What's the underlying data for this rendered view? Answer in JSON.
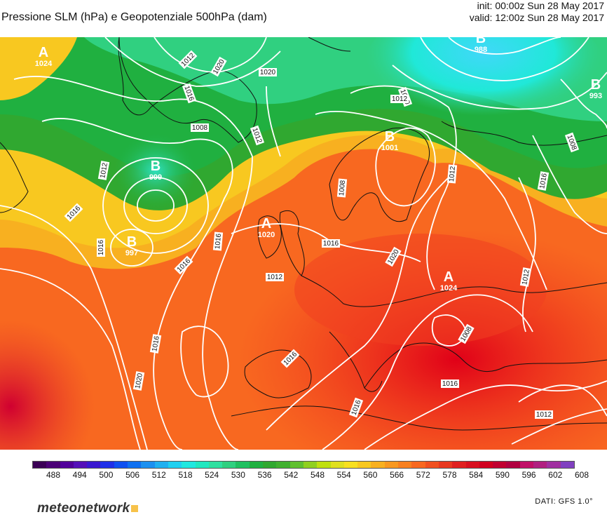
{
  "header": {
    "title": "Pressione SLM (hPa) e Geopotenziale 500hPa (dam)",
    "init": "init: 00:00z Sun 28 May 2017",
    "valid": "valid: 12:00z Sun 28 May 2017"
  },
  "map": {
    "pressure_centers": [
      {
        "type": "A",
        "value": "1024"
      },
      {
        "type": "B",
        "value": "999"
      },
      {
        "type": "B",
        "value": "997"
      },
      {
        "type": "A",
        "value": "1020"
      },
      {
        "type": "B",
        "value": "1001"
      },
      {
        "type": "B",
        "value": "988"
      },
      {
        "type": "B",
        "value": "993"
      },
      {
        "type": "A",
        "value": "1024"
      }
    ],
    "isobar_labels": [
      "1012",
      "1020",
      "1016",
      "1008",
      "1012",
      "1020",
      "1012",
      "1016",
      "1008",
      "1016",
      "1012",
      "1008",
      "1016",
      "1016",
      "1016",
      "1016",
      "1020",
      "1012",
      "1016",
      "1016",
      "1020",
      "1016",
      "1012",
      "1016",
      "1008",
      "1012",
      "1012",
      "1020"
    ]
  },
  "colorbar": {
    "colors": [
      "#3a0055",
      "#4a0075",
      "#50009a",
      "#5410b8",
      "#3a18d0",
      "#2030e8",
      "#1050f0",
      "#1070f0",
      "#1c90f0",
      "#20b0f0",
      "#20d0f0",
      "#20e8e0",
      "#20e8c0",
      "#30e0a0",
      "#30d080",
      "#20c060",
      "#20b040",
      "#30a830",
      "#40b030",
      "#60c030",
      "#90d020",
      "#c0e010",
      "#e0e020",
      "#f8e020",
      "#f8c820",
      "#f8b020",
      "#f89820",
      "#f88020",
      "#f86820",
      "#f05020",
      "#e83820",
      "#e02020",
      "#d81020",
      "#d00020",
      "#c00030",
      "#b00040",
      "#c01068",
      "#b02080",
      "#a030a0",
      "#8040c0"
    ],
    "ticks": [
      "488",
      "494",
      "500",
      "506",
      "512",
      "518",
      "524",
      "530",
      "536",
      "542",
      "548",
      "554",
      "560",
      "566",
      "572",
      "578",
      "584",
      "590",
      "596",
      "602",
      "608"
    ]
  },
  "footer": {
    "brand": "meteonetwork",
    "source": "DATI:  GFS  1.0°"
  }
}
